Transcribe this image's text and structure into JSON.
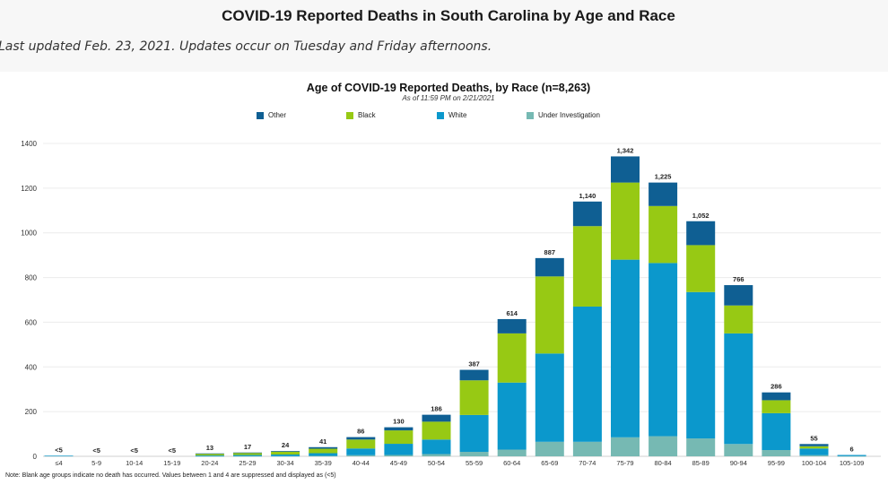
{
  "page": {
    "title": "COVID-19 Reported Deaths in South Carolina by Age and Race",
    "update_note": "Last updated Feb. 23, 2021. Updates occur on Tuesday and Friday afternoons."
  },
  "footnote": "Note: Blank age groups indicate no death has occurred. Values between 1 and 4 are suppressed and displayed as (<5)",
  "colors": {
    "other": "#0f5f93",
    "black": "#97c914",
    "white": "#0b98cc",
    "under_investigation": "#76b9b3"
  },
  "chart_data": {
    "type": "bar",
    "stacked": true,
    "title": "Age of COVID-19 Reported Deaths, by Race (n=8,263)",
    "subtitle": "As of 11:59 PM on 2/21/2021",
    "legend_position": "top",
    "grid": true,
    "ylim": [
      0,
      1400
    ],
    "yticks": [
      0,
      200,
      400,
      600,
      800,
      1000,
      1200,
      1400
    ],
    "categories": [
      "≤4",
      "5-9",
      "10-14",
      "15-19",
      "20-24",
      "25-29",
      "30-34",
      "35-39",
      "40-44",
      "45-49",
      "50-54",
      "55-59",
      "60-64",
      "65-69",
      "70-74",
      "75-79",
      "80-84",
      "85-89",
      "90-94",
      "95-99",
      "100-104",
      "105-109"
    ],
    "totals_labels": [
      "<5",
      "<5",
      "<5",
      "<5",
      "13",
      "17",
      "24",
      "41",
      "86",
      "130",
      "186",
      "387",
      "614",
      "887",
      "1,140",
      "1,342",
      "1,225",
      "1,052",
      "766",
      "286",
      "55",
      "6"
    ],
    "series": [
      {
        "name": "Under Investigation",
        "key": "under_investigation",
        "values": [
          2,
          0,
          0,
          0,
          1,
          1,
          1,
          2,
          5,
          6,
          10,
          20,
          30,
          65,
          65,
          85,
          90,
          80,
          55,
          28,
          5,
          1
        ]
      },
      {
        "name": "White",
        "key": "white",
        "values": [
          1,
          0,
          0,
          0,
          3,
          5,
          7,
          12,
          30,
          50,
          65,
          165,
          300,
          395,
          605,
          795,
          775,
          655,
          495,
          165,
          30,
          5
        ]
      },
      {
        "name": "Black",
        "key": "black",
        "values": [
          0,
          0,
          0,
          0,
          7,
          9,
          13,
          20,
          40,
          60,
          80,
          155,
          220,
          345,
          360,
          345,
          255,
          210,
          125,
          58,
          10,
          0
        ]
      },
      {
        "name": "Other",
        "key": "other",
        "values": [
          0,
          0,
          0,
          0,
          2,
          2,
          3,
          7,
          11,
          14,
          31,
          47,
          64,
          82,
          110,
          117,
          105,
          107,
          91,
          35,
          10,
          0
        ]
      }
    ],
    "legend": [
      {
        "name": "Other",
        "key": "other"
      },
      {
        "name": "Black",
        "key": "black"
      },
      {
        "name": "White",
        "key": "white"
      },
      {
        "name": "Under Investigation",
        "key": "under_investigation"
      }
    ]
  }
}
